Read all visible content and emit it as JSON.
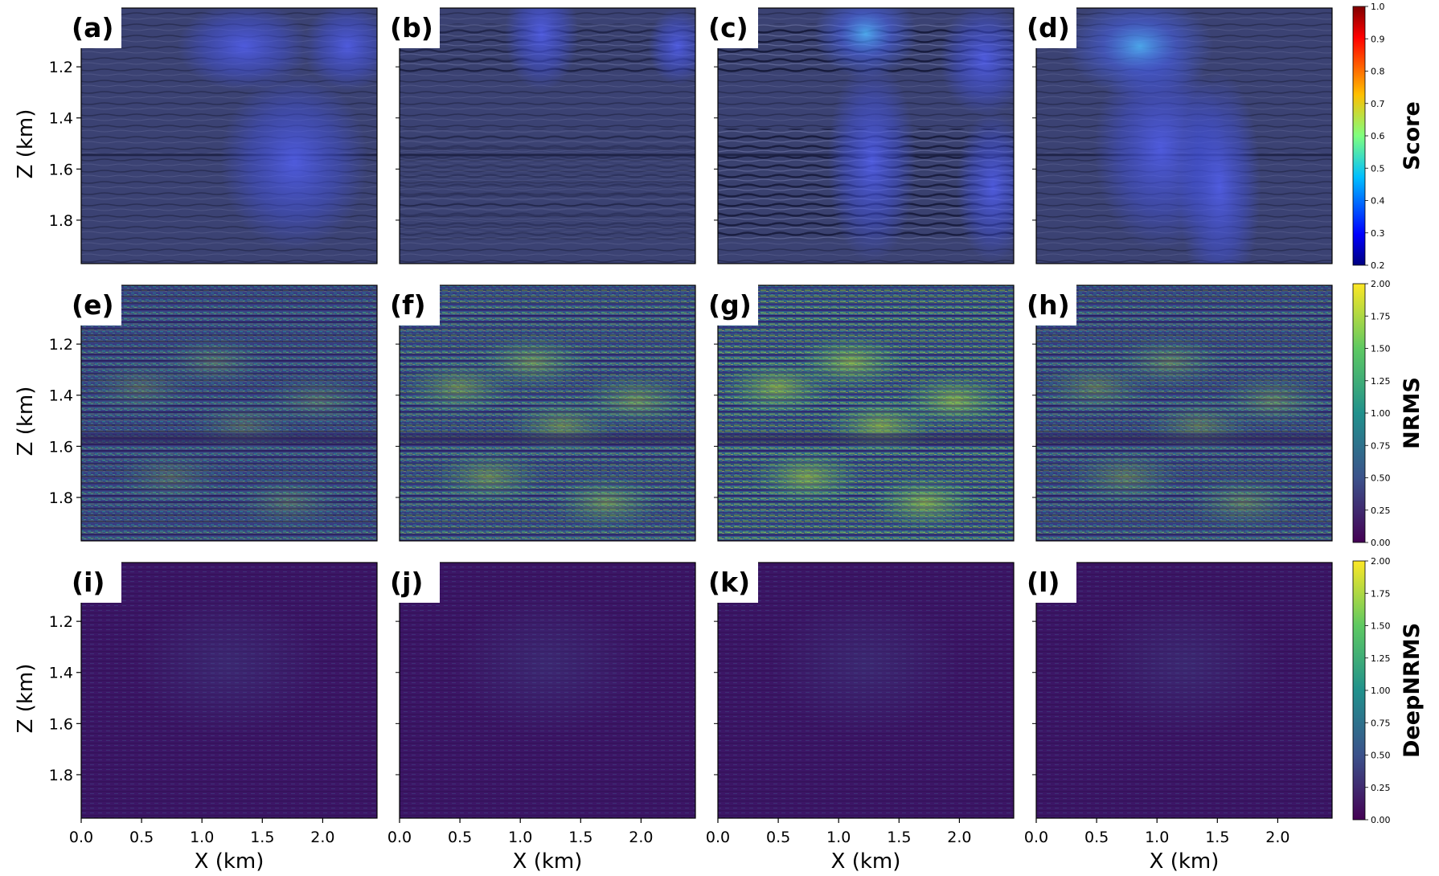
{
  "figure": {
    "x_axis_label": "X (km)",
    "z_axis_label": "Z (km)",
    "x_ticks": [
      "0.0",
      "0.5",
      "1.0",
      "1.5",
      "2.0"
    ],
    "z_ticks": [
      "1.2",
      "1.4",
      "1.6",
      "1.8"
    ]
  },
  "chart_data": [
    {
      "type": "heatmap",
      "panel": "(a)",
      "row_metric": "Score",
      "xlabel": "",
      "ylabel": "Z (km)"
    },
    {
      "type": "heatmap",
      "panel": "(b)",
      "row_metric": "Score",
      "xlabel": "",
      "ylabel": ""
    },
    {
      "type": "heatmap",
      "panel": "(c)",
      "row_metric": "Score",
      "xlabel": "",
      "ylabel": ""
    },
    {
      "type": "heatmap",
      "panel": "(d)",
      "row_metric": "Score",
      "xlabel": "",
      "ylabel": ""
    },
    {
      "type": "heatmap",
      "panel": "(e)",
      "row_metric": "NRMS",
      "xlabel": "",
      "ylabel": "Z (km)"
    },
    {
      "type": "heatmap",
      "panel": "(f)",
      "row_metric": "NRMS",
      "xlabel": "",
      "ylabel": ""
    },
    {
      "type": "heatmap",
      "panel": "(g)",
      "row_metric": "NRMS",
      "xlabel": "",
      "ylabel": ""
    },
    {
      "type": "heatmap",
      "panel": "(h)",
      "row_metric": "NRMS",
      "xlabel": "",
      "ylabel": ""
    },
    {
      "type": "heatmap",
      "panel": "(i)",
      "row_metric": "DeepNRMS",
      "xlabel": "X (km)",
      "ylabel": "Z (km)"
    },
    {
      "type": "heatmap",
      "panel": "(j)",
      "row_metric": "DeepNRMS",
      "xlabel": "X (km)",
      "ylabel": ""
    },
    {
      "type": "heatmap",
      "panel": "(k)",
      "row_metric": "DeepNRMS",
      "xlabel": "X (km)",
      "ylabel": ""
    },
    {
      "type": "heatmap",
      "panel": "(l)",
      "row_metric": "DeepNRMS",
      "xlabel": "X (km)",
      "ylabel": ""
    }
  ],
  "rows": [
    {
      "metric": "Score",
      "panels": [
        "(a)",
        "(b)",
        "(c)",
        "(d)"
      ],
      "colorbar": {
        "min": 0.2,
        "max": 1.0,
        "colormap": "jet",
        "ticks": [
          "0.2",
          "0.3",
          "0.4",
          "0.5",
          "0.6",
          "0.7",
          "0.8",
          "0.9",
          "1.0"
        ]
      }
    },
    {
      "metric": "NRMS",
      "panels": [
        "(e)",
        "(f)",
        "(g)",
        "(h)"
      ],
      "colorbar": {
        "min": 0.0,
        "max": 2.0,
        "colormap": "viridis",
        "ticks": [
          "0.00",
          "0.25",
          "0.50",
          "0.75",
          "1.00",
          "1.25",
          "1.50",
          "1.75",
          "2.00"
        ]
      }
    },
    {
      "metric": "DeepNRMS",
      "panels": [
        "(i)",
        "(j)",
        "(k)",
        "(l)"
      ],
      "colorbar": {
        "min": 0.0,
        "max": 2.0,
        "colormap": "viridis",
        "ticks": [
          "0.00",
          "0.25",
          "0.50",
          "0.75",
          "1.00",
          "1.25",
          "1.50",
          "1.75",
          "2.00"
        ]
      }
    }
  ],
  "colors": {
    "score_background": "#3b4273",
    "nrms_dark": "#3b1d5e",
    "deepnrms_dark": "#3a1562",
    "highlight_blue": "#4a5ae8"
  }
}
